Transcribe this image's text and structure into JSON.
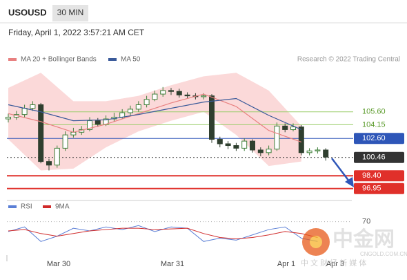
{
  "chart_data": {
    "type": "candlestick",
    "symbol": "USOUSD",
    "interval": "30 MIN",
    "timestamp": "Friday, April 1, 2022 3:57:21 AM CET",
    "legend": [
      {
        "name": "MA 20 + Bollinger Bands",
        "color": "#e88080"
      },
      {
        "name": "MA 50",
        "color": "#3a5a9a"
      }
    ],
    "credit": "Research © 2022 Trading Central",
    "x_labels": [
      "Mar 30",
      "Mar 31",
      "Apr 1",
      "Apr 3"
    ],
    "ylim": [
      96,
      110.8
    ],
    "up_color": "#3f7f3a",
    "down_color": "#2f3f2f",
    "open": [
      104.8,
      105.0,
      105.3,
      106.0,
      106.4,
      100.0,
      99.6,
      101.5,
      103.0,
      103.3,
      103.6,
      104.6,
      104.2,
      104.8,
      105.0,
      105.5,
      105.9,
      106.4,
      107.0,
      107.6,
      108.0,
      107.9,
      107.5,
      107.4,
      107.3,
      107.4,
      102.5,
      102.0,
      101.8,
      101.5,
      102.3,
      101.3,
      101.0,
      101.4,
      104.0,
      103.6,
      103.9,
      101.0,
      101.2,
      101.3
    ],
    "high": [
      105.4,
      105.7,
      106.4,
      106.8,
      106.6,
      100.3,
      101.8,
      103.4,
      103.8,
      104.0,
      105.0,
      104.9,
      105.2,
      105.5,
      105.9,
      106.3,
      106.8,
      107.4,
      108.0,
      108.4,
      108.3,
      108.2,
      107.8,
      107.7,
      107.7,
      107.6,
      102.8,
      102.3,
      102.1,
      102.6,
      102.5,
      101.6,
      101.8,
      104.4,
      104.3,
      104.3,
      104.1,
      101.5,
      101.6,
      101.5
    ],
    "low": [
      104.4,
      104.7,
      105.0,
      105.7,
      99.8,
      99.0,
      99.3,
      101.2,
      102.7,
      103.0,
      103.4,
      103.9,
      104.0,
      104.5,
      104.8,
      105.2,
      105.6,
      106.1,
      106.8,
      107.3,
      107.5,
      107.2,
      107.1,
      107.0,
      107.0,
      102.1,
      101.6,
      101.4,
      101.2,
      101.2,
      101.0,
      100.6,
      100.7,
      101.2,
      103.3,
      103.4,
      100.7,
      100.7,
      100.9,
      100.1
    ],
    "close": [
      105.0,
      105.3,
      106.0,
      106.4,
      100.0,
      99.6,
      101.5,
      103.0,
      103.3,
      103.6,
      104.6,
      104.2,
      104.8,
      105.0,
      105.5,
      105.9,
      106.4,
      107.0,
      107.6,
      108.0,
      107.9,
      107.5,
      107.4,
      107.3,
      107.4,
      102.5,
      102.0,
      101.8,
      101.5,
      102.3,
      101.3,
      101.0,
      101.4,
      104.0,
      103.6,
      103.9,
      101.0,
      101.2,
      101.3,
      100.5
    ],
    "ma20": [
      105.4,
      104.5,
      103.3,
      104.2,
      105.4,
      106.6,
      107.6,
      106.2,
      103.5,
      102.2
    ],
    "ma50": [
      106.4,
      105.6,
      104.6,
      104.7,
      105.3,
      106.0,
      106.7,
      107.1,
      105.2,
      103.6
    ],
    "bb_upper": [
      108.3,
      110.0,
      106.8,
      106.8,
      107.4,
      108.6,
      109.6,
      110.0,
      108.0,
      104.0
    ],
    "bb_lower": [
      102.5,
      99.0,
      99.2,
      101.6,
      103.4,
      104.6,
      105.6,
      103.0,
      99.5,
      100.0
    ],
    "band_color": "#fbd9d9",
    "levels": [
      {
        "value": 105.6,
        "label": "105.60",
        "style": "resistance",
        "color": "#9acd6a",
        "text_color": "#5a9a2a"
      },
      {
        "value": 104.15,
        "label": "104.15",
        "style": "resistance",
        "color": "#9acd6a",
        "text_color": "#5a9a2a"
      },
      {
        "value": 102.6,
        "label": "102.60",
        "style": "pivot",
        "color": "#2e56b8",
        "text_color": "#ffffff"
      },
      {
        "value": 100.46,
        "label": "100.46",
        "style": "last",
        "color": "#333333",
        "text_color": "#ffffff"
      },
      {
        "value": 98.4,
        "label": "98.40",
        "style": "support",
        "color": "#e0302a",
        "text_color": "#ffffff"
      },
      {
        "value": 96.95,
        "label": "96.95",
        "style": "support",
        "color": "#e0302a",
        "text_color": "#ffffff"
      }
    ],
    "rsi": {
      "legend": [
        {
          "name": "RSI",
          "color": "#5b7fd6"
        },
        {
          "name": "9MA",
          "color": "#d02a2a"
        }
      ],
      "ylim": [
        10,
        91.5
      ],
      "yticks": [
        70
      ],
      "rsi_values": [
        55,
        62,
        40,
        48,
        60,
        56,
        62,
        58,
        64,
        55,
        62,
        60,
        40,
        45,
        42,
        50,
        58,
        62,
        45,
        40
      ],
      "ma_values": [
        56,
        58,
        52,
        48,
        52,
        56,
        58,
        60,
        60,
        58,
        59,
        60,
        52,
        46,
        44,
        46,
        50,
        55,
        52,
        46
      ]
    },
    "watermark": {
      "brand": "中金网",
      "site": "CNGOLD.COM.CN",
      "slogan": "中 文 财 经 新 媒 体"
    }
  }
}
